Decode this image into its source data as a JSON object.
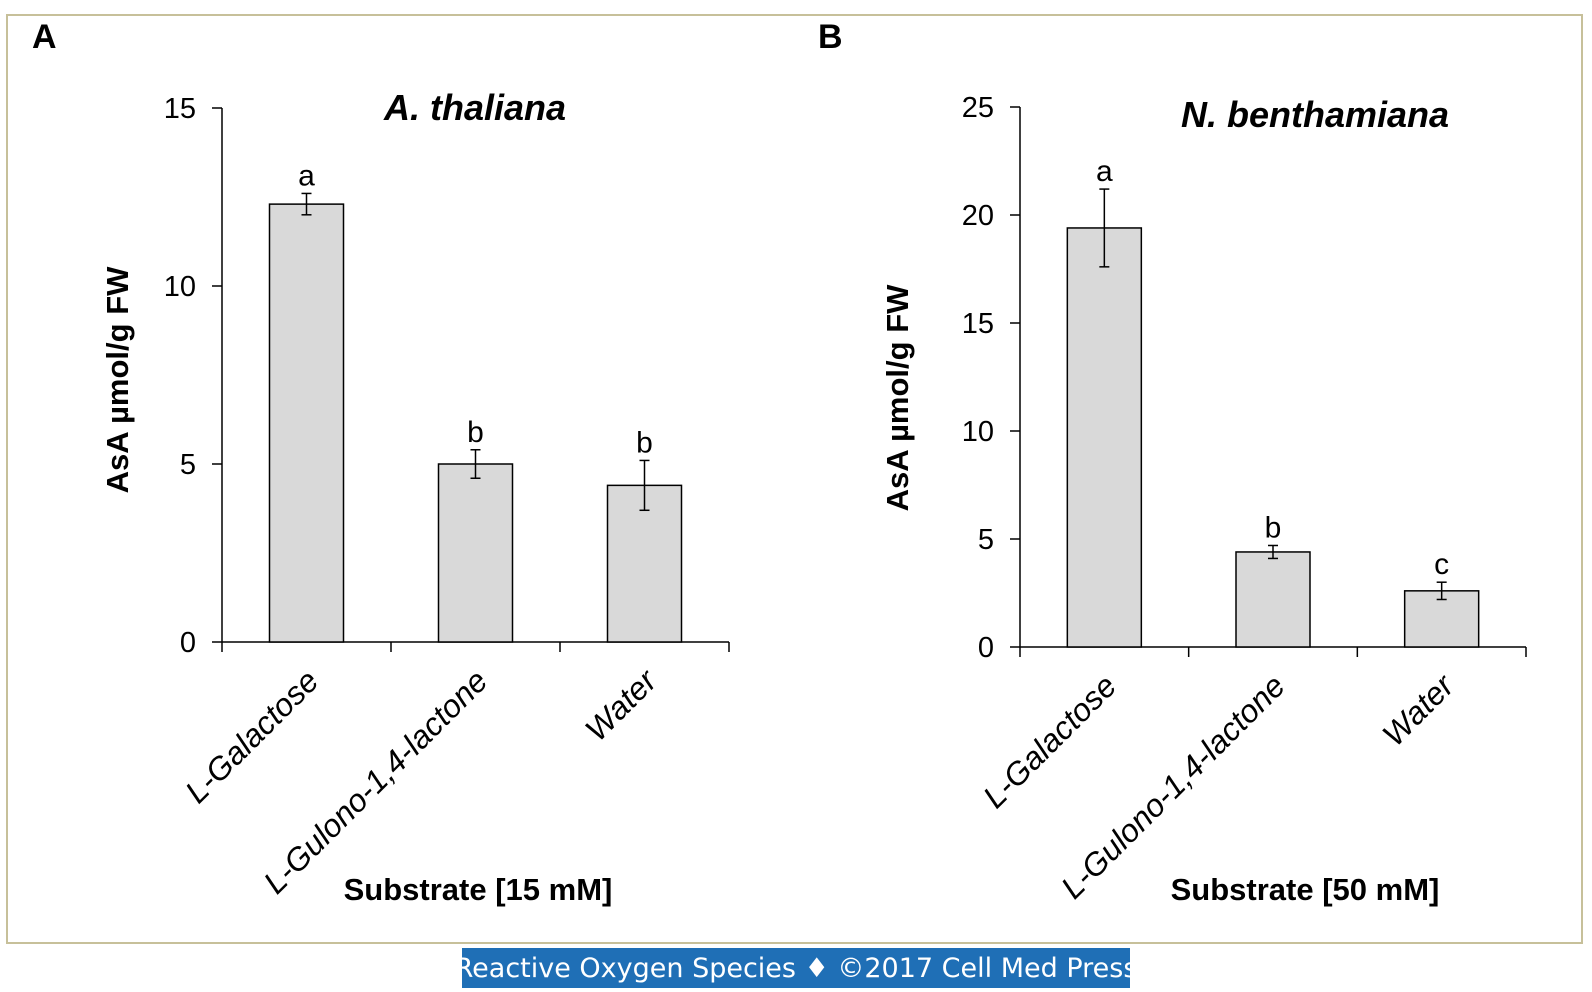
{
  "footer": {
    "text": "Reactive Oxygen Species ♦ ©2017 Cell Med Press"
  },
  "colors": {
    "frame": "#c7c09a",
    "bar_fill": "#d9d9d9",
    "bar_stroke": "#000000",
    "footer_bg": "#1f6fb6",
    "footer_text": "#ffffff"
  },
  "chart_data": [
    {
      "type": "bar",
      "panel_label": "A",
      "title": "A. thaliana",
      "ylabel": "AsA µmol/g FW",
      "xlabel": "Substrate [15 mM]",
      "categories": [
        "L-Galactose",
        "L-Gulono-1,4-lactone",
        "Water"
      ],
      "values": [
        12.3,
        5.0,
        4.4
      ],
      "errors": [
        0.3,
        0.4,
        0.7
      ],
      "significance_letters": [
        "a",
        "b",
        "b"
      ],
      "ylim": [
        0,
        15
      ],
      "yticks": [
        0,
        5,
        10,
        15
      ],
      "grid": false
    },
    {
      "type": "bar",
      "panel_label": "B",
      "title": "N. benthamiana",
      "ylabel": "AsA µmol/g FW",
      "xlabel": "Substrate [50 mM]",
      "categories": [
        "L-Galactose",
        "L-Gulono-1,4-lactone",
        "Water"
      ],
      "values": [
        19.4,
        4.4,
        2.6
      ],
      "errors": [
        1.8,
        0.3,
        0.4
      ],
      "significance_letters": [
        "a",
        "b",
        "c"
      ],
      "ylim": [
        0,
        25
      ],
      "yticks": [
        0,
        5,
        10,
        15,
        20,
        25
      ],
      "grid": false
    }
  ]
}
